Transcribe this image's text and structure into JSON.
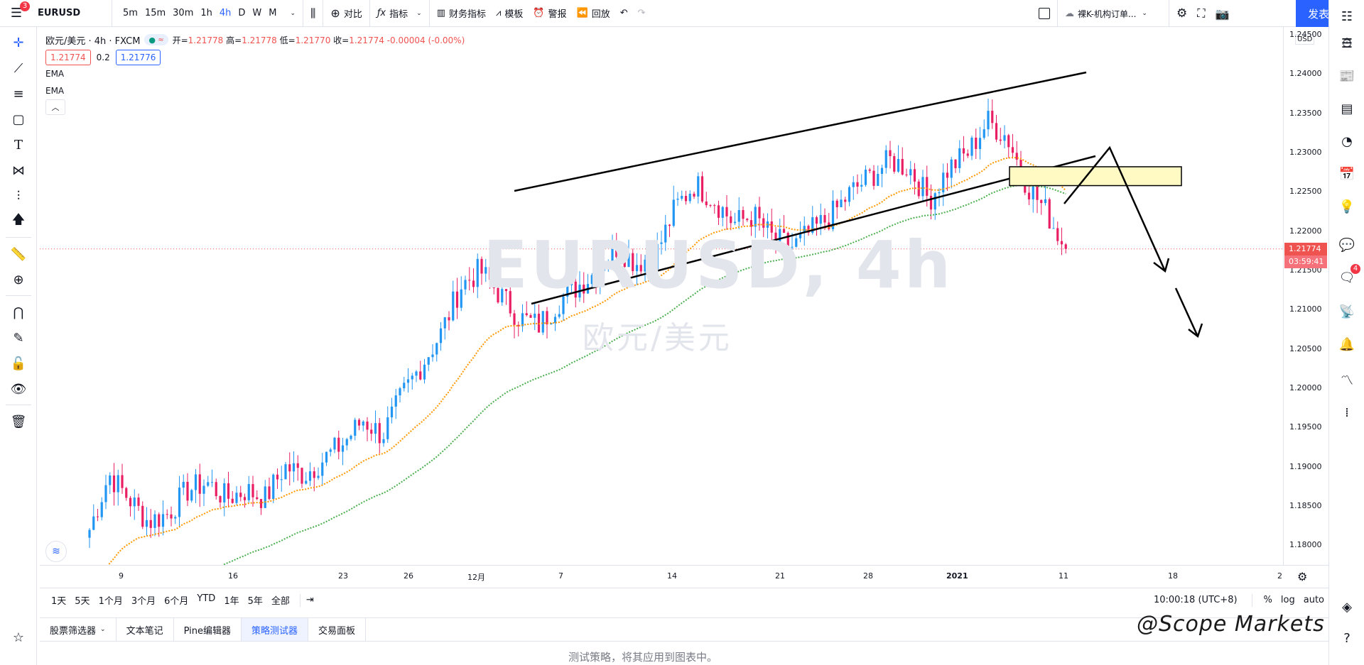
{
  "topbar": {
    "badge": "3",
    "symbol": "EURUSD",
    "intervals": [
      "5m",
      "15m",
      "30m",
      "1h",
      "4h",
      "D",
      "W",
      "M"
    ],
    "active_interval": "4h",
    "compare": "对比",
    "indicators": "指标",
    "financials": "财务指标",
    "templates": "模板",
    "alert": "警报",
    "replay": "回放",
    "layout_name": "裸K-机构订单...",
    "publish": "发表"
  },
  "legend": {
    "title": "欧元/美元 · 4h · FXCM",
    "ohlc_open_label": "开=",
    "ohlc_open": "1.21778",
    "ohlc_high_label": "高=",
    "ohlc_high": "1.21778",
    "ohlc_low_label": "低=",
    "ohlc_low": "1.21770",
    "ohlc_close_label": "收=",
    "ohlc_close": "1.21774",
    "ohlc_change": "-0.00004 (-0.00%)",
    "bid": "1.21774",
    "spread": "0.2",
    "ask": "1.21776",
    "indicator1": "EMA",
    "indicator2": "EMA"
  },
  "watermark": {
    "symbol": "EURUSD, 4h",
    "desc": "欧元/美元"
  },
  "price_scale": {
    "currency": "USD",
    "ticks": [
      "1.24500",
      "1.24000",
      "1.23500",
      "1.23000",
      "1.22500",
      "1.22000",
      "1.21500",
      "1.21000",
      "1.20500",
      "1.20000",
      "1.19500",
      "1.19000",
      "1.18500",
      "1.18000"
    ],
    "current_price": "1.21774",
    "countdown": "03:59:41"
  },
  "time_scale": {
    "ticks": [
      "9",
      "16",
      "23",
      "26",
      "12月",
      "7",
      "14",
      "21",
      "28",
      "2021",
      "11",
      "18",
      "2"
    ]
  },
  "ranges": {
    "items": [
      "1天",
      "5天",
      "1个月",
      "3个月",
      "6个月",
      "YTD",
      "1年",
      "5年",
      "全部"
    ],
    "clock": "10:00:18 (UTC+8)",
    "percent": "%",
    "log": "log",
    "auto": "auto"
  },
  "bottom_tabs": {
    "items": [
      "股票筛选器",
      "文本笔记",
      "Pine编辑器",
      "策略测试器",
      "交易面板"
    ],
    "active": "策略测试器",
    "strategy_message": "测试策略，将其应用到图表中。"
  },
  "overlay_watermark": "@Scope Markets",
  "chart_data": {
    "type": "candlestick",
    "symbol": "EURUSD",
    "ylim": [
      1.1775,
      1.246
    ],
    "ema_fast_color": "#ff9800",
    "ema_slow_color": "#4caf50",
    "up_color": "#2196f3",
    "down_color": "#e91e63",
    "x_categories": [
      "9",
      "16",
      "23",
      "26",
      "12月",
      "7",
      "14",
      "21",
      "28",
      "2021",
      "11",
      "18",
      "2"
    ],
    "price_path": [
      1.182,
      1.189,
      1.186,
      1.183,
      1.184,
      1.187,
      1.188,
      1.186,
      1.187,
      1.186,
      1.19,
      1.189,
      1.191,
      1.193,
      1.196,
      1.194,
      1.199,
      1.203,
      1.207,
      1.213,
      1.215,
      1.212,
      1.209,
      1.208,
      1.211,
      1.213,
      1.215,
      1.218,
      1.216,
      1.217,
      1.223,
      1.226,
      1.224,
      1.221,
      1.222,
      1.219,
      1.218,
      1.22,
      1.222,
      1.225,
      1.227,
      1.229,
      1.228,
      1.224,
      1.228,
      1.23,
      1.234,
      1.232,
      1.226,
      1.2225,
      1.2177
    ],
    "current_price": 1.21774,
    "resistance_zone": [
      1.2258,
      1.2282
    ]
  },
  "colors": {
    "accent": "#2962ff",
    "price_label": "#ef5350",
    "zone_fill": "#fff9c4"
  }
}
